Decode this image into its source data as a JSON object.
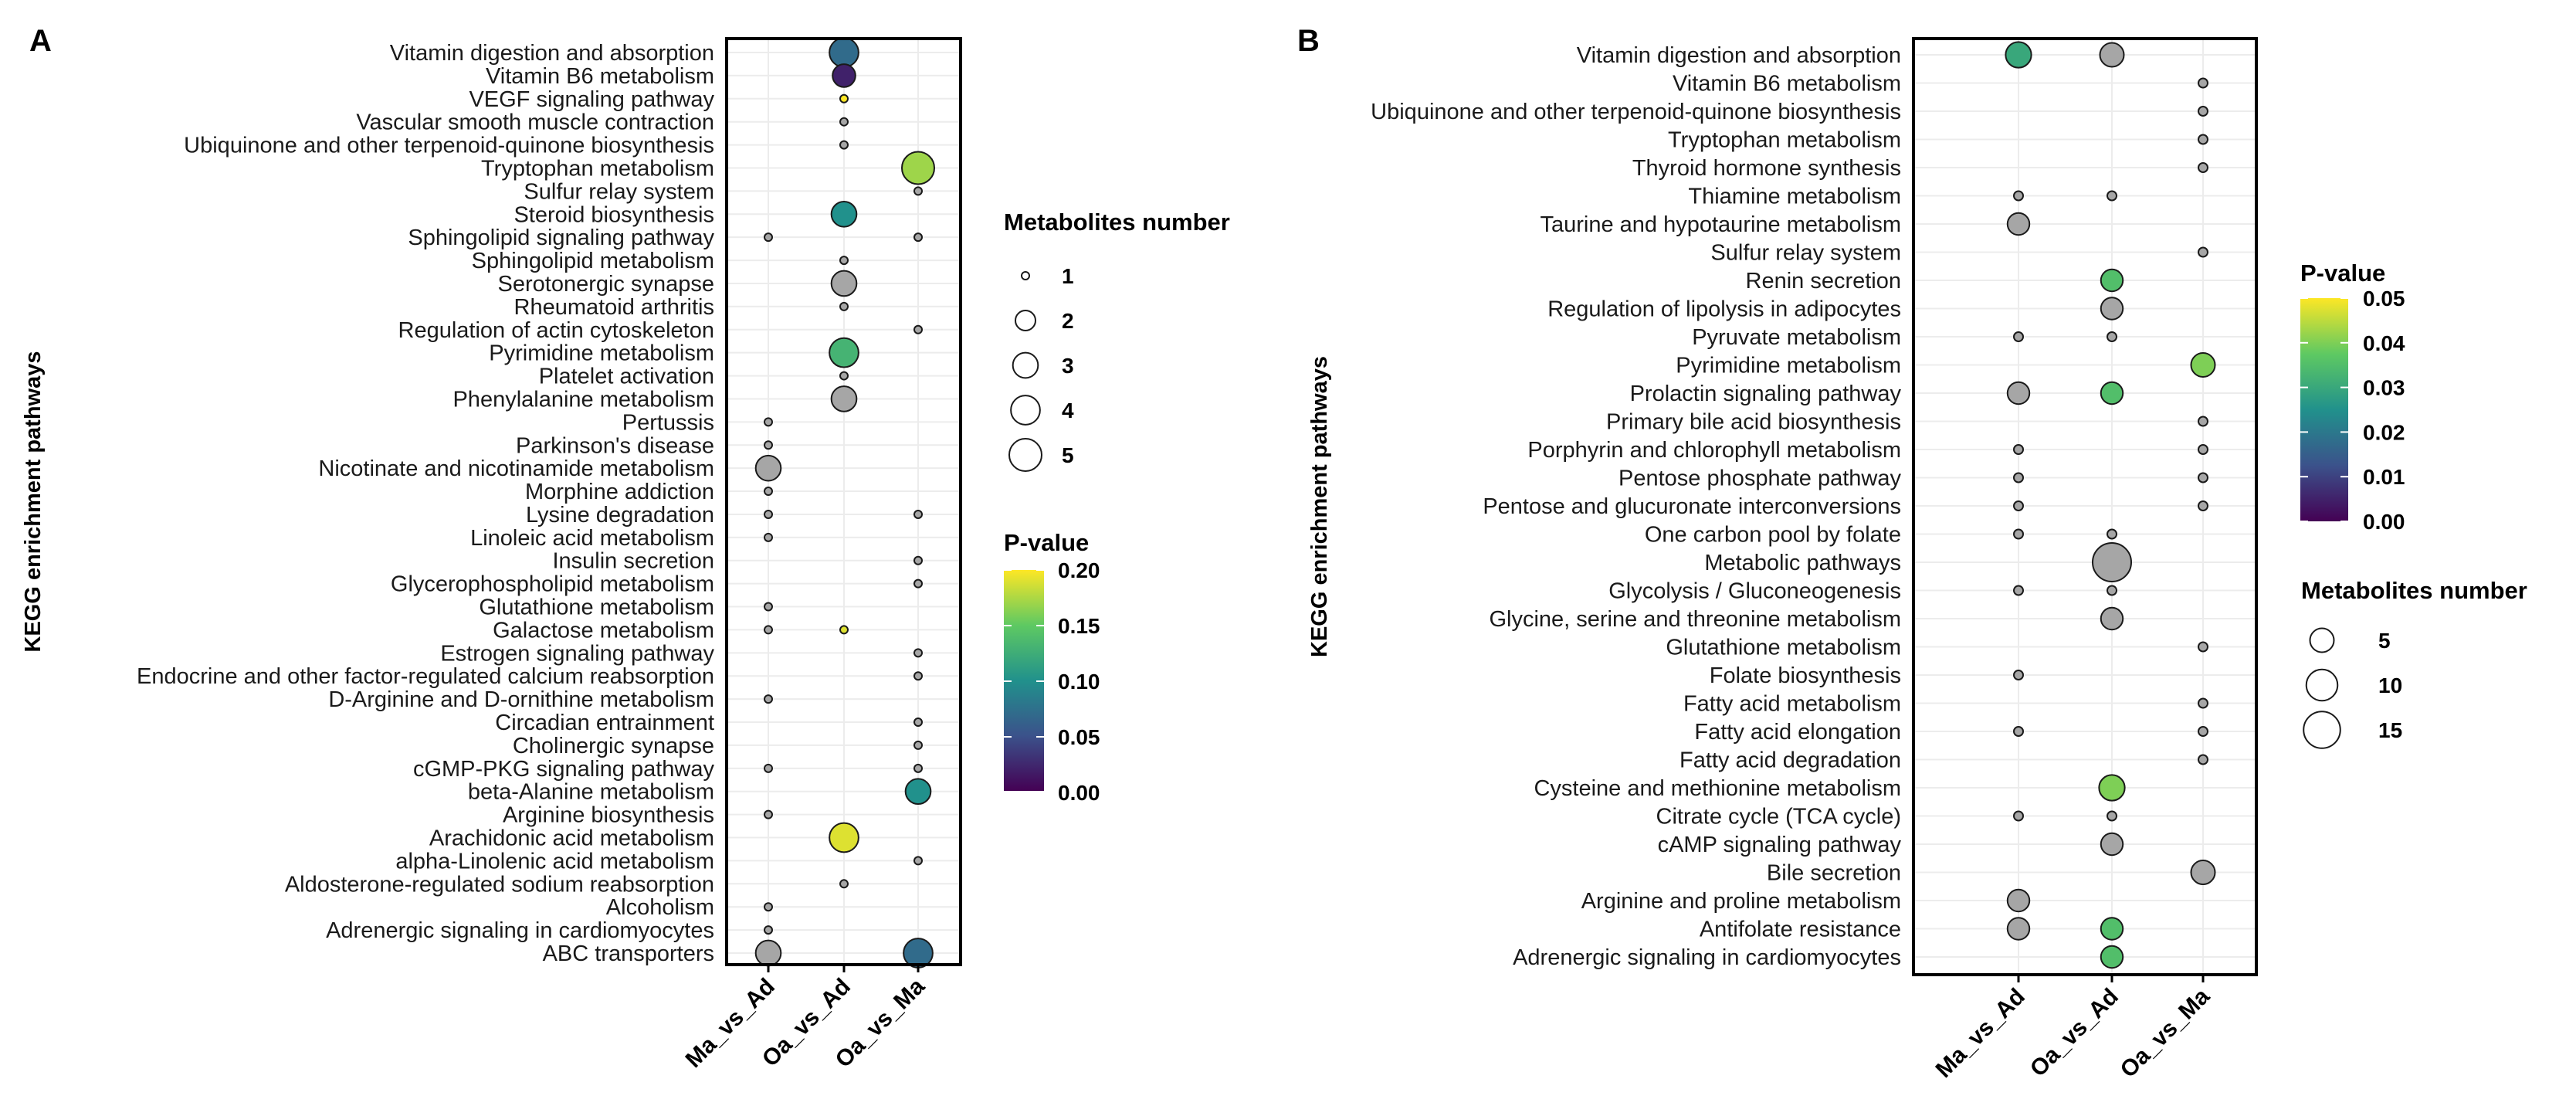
{
  "chart_data": [
    {
      "panel": "A",
      "type": "scatter",
      "subtype": "bubble",
      "ylabel": "KEGG enrichment pathways",
      "xlabel": "",
      "comparisons": [
        "Ma_vs_Ad",
        "Oa_vs_Ad",
        "Oa_vs_Ma"
      ],
      "pathways": [
        "Vitamin digestion and absorption",
        "Vitamin B6 metabolism",
        "VEGF signaling pathway",
        "Vascular smooth muscle contraction",
        "Ubiquinone and other terpenoid-quinone biosynthesis",
        "Tryptophan metabolism",
        "Sulfur relay system",
        "Steroid biosynthesis",
        "Sphingolipid signaling pathway",
        "Sphingolipid metabolism",
        "Serotonergic synapse",
        "Rheumatoid arthritis",
        "Regulation of actin cytoskeleton",
        "Pyrimidine metabolism",
        "Platelet activation",
        "Phenylalanine metabolism",
        "Pertussis",
        "Parkinson's disease",
        "Nicotinate and nicotinamide metabolism",
        "Morphine addiction",
        "Lysine degradation",
        "Linoleic acid metabolism",
        "Insulin secretion",
        "Glycerophospholipid metabolism",
        "Glutathione metabolism",
        "Galactose metabolism",
        "Estrogen signaling pathway",
        "Endocrine and other factor-regulated calcium reabsorption",
        "D-Arginine and D-ornithine metabolism",
        "Circadian entrainment",
        "Cholinergic synapse",
        "cGMP-PKG signaling pathway",
        "beta-Alanine metabolism",
        "Arginine biosynthesis",
        "Arachidonic acid metabolism",
        "alpha-Linolenic acid metabolism",
        "Aldosterone-regulated sodium reabsorption",
        "Alcoholism",
        "Adrenergic signaling in cardiomyocytes",
        "ABC transporters"
      ],
      "points": [
        {
          "pathway": "Vitamin digestion and absorption",
          "comparison": "Oa_vs_Ad",
          "count": 4,
          "pvalue": 0.07
        },
        {
          "pathway": "Vitamin B6 metabolism",
          "comparison": "Oa_vs_Ad",
          "count": 2.5,
          "pvalue": 0.02
        },
        {
          "pathway": "VEGF signaling pathway",
          "comparison": "Oa_vs_Ad",
          "count": 1,
          "pvalue": 0.2
        },
        {
          "pathway": "Vascular smooth muscle contraction",
          "comparison": "Oa_vs_Ad",
          "count": 1,
          "pvalue": null
        },
        {
          "pathway": "Ubiquinone and other terpenoid-quinone biosynthesis",
          "comparison": "Oa_vs_Ad",
          "count": 1,
          "pvalue": null
        },
        {
          "pathway": "Tryptophan metabolism",
          "comparison": "Oa_vs_Ma",
          "count": 5,
          "pvalue": 0.17
        },
        {
          "pathway": "Sulfur relay system",
          "comparison": "Oa_vs_Ma",
          "count": 1,
          "pvalue": null
        },
        {
          "pathway": "Steroid biosynthesis",
          "comparison": "Oa_vs_Ad",
          "count": 3,
          "pvalue": 0.1
        },
        {
          "pathway": "Sphingolipid signaling pathway",
          "comparison": "Ma_vs_Ad",
          "count": 1,
          "pvalue": null
        },
        {
          "pathway": "Sphingolipid signaling pathway",
          "comparison": "Oa_vs_Ma",
          "count": 1,
          "pvalue": null
        },
        {
          "pathway": "Sphingolipid metabolism",
          "comparison": "Oa_vs_Ad",
          "count": 1,
          "pvalue": null
        },
        {
          "pathway": "Serotonergic synapse",
          "comparison": "Oa_vs_Ad",
          "count": 3,
          "pvalue": null
        },
        {
          "pathway": "Rheumatoid arthritis",
          "comparison": "Oa_vs_Ad",
          "count": 1,
          "pvalue": null
        },
        {
          "pathway": "Regulation of actin cytoskeleton",
          "comparison": "Oa_vs_Ma",
          "count": 1,
          "pvalue": null
        },
        {
          "pathway": "Pyrimidine metabolism",
          "comparison": "Oa_vs_Ad",
          "count": 4,
          "pvalue": 0.13
        },
        {
          "pathway": "Platelet activation",
          "comparison": "Oa_vs_Ad",
          "count": 1,
          "pvalue": null
        },
        {
          "pathway": "Phenylalanine metabolism",
          "comparison": "Oa_vs_Ad",
          "count": 3,
          "pvalue": null
        },
        {
          "pathway": "Pertussis",
          "comparison": "Ma_vs_Ad",
          "count": 1,
          "pvalue": null
        },
        {
          "pathway": "Parkinson's disease",
          "comparison": "Ma_vs_Ad",
          "count": 1,
          "pvalue": null
        },
        {
          "pathway": "Nicotinate and nicotinamide metabolism",
          "comparison": "Ma_vs_Ad",
          "count": 3,
          "pvalue": null
        },
        {
          "pathway": "Morphine addiction",
          "comparison": "Ma_vs_Ad",
          "count": 1,
          "pvalue": null
        },
        {
          "pathway": "Lysine degradation",
          "comparison": "Ma_vs_Ad",
          "count": 1,
          "pvalue": null
        },
        {
          "pathway": "Lysine degradation",
          "comparison": "Oa_vs_Ma",
          "count": 1,
          "pvalue": null
        },
        {
          "pathway": "Linoleic acid metabolism",
          "comparison": "Ma_vs_Ad",
          "count": 1,
          "pvalue": null
        },
        {
          "pathway": "Insulin secretion",
          "comparison": "Oa_vs_Ma",
          "count": 1,
          "pvalue": null
        },
        {
          "pathway": "Glycerophospholipid metabolism",
          "comparison": "Oa_vs_Ma",
          "count": 1,
          "pvalue": null
        },
        {
          "pathway": "Glutathione metabolism",
          "comparison": "Ma_vs_Ad",
          "count": 1,
          "pvalue": null
        },
        {
          "pathway": "Galactose metabolism",
          "comparison": "Ma_vs_Ad",
          "count": 1,
          "pvalue": null
        },
        {
          "pathway": "Galactose metabolism",
          "comparison": "Oa_vs_Ad",
          "count": 1,
          "pvalue": 0.19
        },
        {
          "pathway": "Estrogen signaling pathway",
          "comparison": "Oa_vs_Ma",
          "count": 1,
          "pvalue": null
        },
        {
          "pathway": "Endocrine and other factor-regulated calcium reabsorption",
          "comparison": "Oa_vs_Ma",
          "count": 1,
          "pvalue": null
        },
        {
          "pathway": "D-Arginine and D-ornithine metabolism",
          "comparison": "Ma_vs_Ad",
          "count": 1,
          "pvalue": null
        },
        {
          "pathway": "Circadian entrainment",
          "comparison": "Oa_vs_Ma",
          "count": 1,
          "pvalue": null
        },
        {
          "pathway": "Cholinergic synapse",
          "comparison": "Oa_vs_Ma",
          "count": 1,
          "pvalue": null
        },
        {
          "pathway": "cGMP-PKG signaling pathway",
          "comparison": "Ma_vs_Ad",
          "count": 1,
          "pvalue": null
        },
        {
          "pathway": "cGMP-PKG signaling pathway",
          "comparison": "Oa_vs_Ma",
          "count": 1,
          "pvalue": null
        },
        {
          "pathway": "beta-Alanine metabolism",
          "comparison": "Oa_vs_Ma",
          "count": 3,
          "pvalue": 0.1
        },
        {
          "pathway": "Arginine biosynthesis",
          "comparison": "Ma_vs_Ad",
          "count": 1,
          "pvalue": null
        },
        {
          "pathway": "Arachidonic acid metabolism",
          "comparison": "Oa_vs_Ad",
          "count": 4,
          "pvalue": 0.19
        },
        {
          "pathway": "alpha-Linolenic acid metabolism",
          "comparison": "Oa_vs_Ma",
          "count": 1,
          "pvalue": null
        },
        {
          "pathway": "Aldosterone-regulated sodium reabsorption",
          "comparison": "Oa_vs_Ad",
          "count": 1,
          "pvalue": null
        },
        {
          "pathway": "Alcoholism",
          "comparison": "Ma_vs_Ad",
          "count": 1,
          "pvalue": null
        },
        {
          "pathway": "Adrenergic signaling in cardiomyocytes",
          "comparison": "Ma_vs_Ad",
          "count": 1,
          "pvalue": null
        },
        {
          "pathway": "ABC transporters",
          "comparison": "Ma_vs_Ad",
          "count": 3,
          "pvalue": null
        },
        {
          "pathway": "ABC transporters",
          "comparison": "Oa_vs_Ma",
          "count": 4,
          "pvalue": 0.07
        }
      ],
      "size_legend": {
        "title": "Metabolites number",
        "values": [
          1,
          2,
          3,
          4,
          5
        ],
        "range": [
          1,
          5
        ]
      },
      "color_legend": {
        "title": "P-value",
        "ticks": [
          "0.20",
          "0.15",
          "0.10",
          "0.05",
          "0.00"
        ],
        "range": [
          0,
          0.2
        ]
      },
      "na_color": "#a6a6a6"
    },
    {
      "panel": "B",
      "type": "scatter",
      "subtype": "bubble",
      "ylabel": "KEGG enrichment pathways",
      "xlabel": "",
      "comparisons": [
        "Ma_vs_Ad",
        "Oa_vs_Ad",
        "Oa_vs_Ma"
      ],
      "pathways": [
        "Vitamin digestion and absorption",
        "Vitamin B6 metabolism",
        "Ubiquinone and other terpenoid-quinone biosynthesis",
        "Tryptophan metabolism",
        "Thyroid hormone synthesis",
        "Thiamine metabolism",
        "Taurine and hypotaurine metabolism",
        "Sulfur relay system",
        "Renin secretion",
        "Regulation of lipolysis in adipocytes",
        "Pyruvate metabolism",
        "Pyrimidine metabolism",
        "Prolactin signaling pathway",
        "Primary bile acid biosynthesis",
        "Porphyrin and chlorophyll metabolism",
        "Pentose phosphate pathway",
        "Pentose and glucuronate interconversions",
        "One carbon pool by folate",
        "Metabolic pathways",
        "Glycolysis / Gluconeogenesis",
        "Glycine, serine and threonine metabolism",
        "Glutathione metabolism",
        "Folate biosynthesis",
        "Fatty acid metabolism",
        "Fatty acid elongation",
        "Fatty acid degradation",
        "Cysteine and methionine metabolism",
        "Citrate cycle (TCA cycle)",
        "cAMP signaling pathway",
        "Bile secretion",
        "Arginine and proline metabolism",
        "Antifolate resistance",
        "Adrenergic signaling in cardiomyocytes"
      ],
      "points": [
        {
          "pathway": "Vitamin digestion and absorption",
          "comparison": "Ma_vs_Ad",
          "count": 6,
          "pvalue": 0.03
        },
        {
          "pathway": "Vitamin digestion and absorption",
          "comparison": "Oa_vs_Ad",
          "count": 5,
          "pvalue": null
        },
        {
          "pathway": "Vitamin B6 metabolism",
          "comparison": "Oa_vs_Ma",
          "count": 1,
          "pvalue": null
        },
        {
          "pathway": "Ubiquinone and other terpenoid-quinone biosynthesis",
          "comparison": "Oa_vs_Ma",
          "count": 1,
          "pvalue": null
        },
        {
          "pathway": "Tryptophan metabolism",
          "comparison": "Oa_vs_Ma",
          "count": 1,
          "pvalue": null
        },
        {
          "pathway": "Thyroid hormone synthesis",
          "comparison": "Oa_vs_Ma",
          "count": 1,
          "pvalue": null
        },
        {
          "pathway": "Thiamine metabolism",
          "comparison": "Ma_vs_Ad",
          "count": 1,
          "pvalue": null
        },
        {
          "pathway": "Thiamine metabolism",
          "comparison": "Oa_vs_Ad",
          "count": 1,
          "pvalue": null
        },
        {
          "pathway": "Taurine and hypotaurine metabolism",
          "comparison": "Ma_vs_Ad",
          "count": 4,
          "pvalue": null
        },
        {
          "pathway": "Sulfur relay system",
          "comparison": "Oa_vs_Ma",
          "count": 1,
          "pvalue": null
        },
        {
          "pathway": "Renin secretion",
          "comparison": "Oa_vs_Ad",
          "count": 4,
          "pvalue": 0.035
        },
        {
          "pathway": "Regulation of lipolysis in adipocytes",
          "comparison": "Oa_vs_Ad",
          "count": 4,
          "pvalue": null
        },
        {
          "pathway": "Pyruvate metabolism",
          "comparison": "Ma_vs_Ad",
          "count": 1,
          "pvalue": null
        },
        {
          "pathway": "Pyruvate metabolism",
          "comparison": "Oa_vs_Ad",
          "count": 1,
          "pvalue": null
        },
        {
          "pathway": "Pyrimidine metabolism",
          "comparison": "Oa_vs_Ma",
          "count": 5,
          "pvalue": 0.04
        },
        {
          "pathway": "Prolactin signaling pathway",
          "comparison": "Ma_vs_Ad",
          "count": 4,
          "pvalue": null
        },
        {
          "pathway": "Prolactin signaling pathway",
          "comparison": "Oa_vs_Ad",
          "count": 4,
          "pvalue": 0.035
        },
        {
          "pathway": "Primary bile acid biosynthesis",
          "comparison": "Oa_vs_Ma",
          "count": 1,
          "pvalue": null
        },
        {
          "pathway": "Porphyrin and chlorophyll metabolism",
          "comparison": "Ma_vs_Ad",
          "count": 1,
          "pvalue": null
        },
        {
          "pathway": "Porphyrin and chlorophyll metabolism",
          "comparison": "Oa_vs_Ma",
          "count": 1,
          "pvalue": null
        },
        {
          "pathway": "Pentose phosphate pathway",
          "comparison": "Ma_vs_Ad",
          "count": 1,
          "pvalue": null
        },
        {
          "pathway": "Pentose phosphate pathway",
          "comparison": "Oa_vs_Ma",
          "count": 1,
          "pvalue": null
        },
        {
          "pathway": "Pentose and glucuronate interconversions",
          "comparison": "Ma_vs_Ad",
          "count": 1,
          "pvalue": null
        },
        {
          "pathway": "Pentose and glucuronate interconversions",
          "comparison": "Oa_vs_Ma",
          "count": 1,
          "pvalue": null
        },
        {
          "pathway": "One carbon pool by folate",
          "comparison": "Ma_vs_Ad",
          "count": 1,
          "pvalue": null
        },
        {
          "pathway": "One carbon pool by folate",
          "comparison": "Oa_vs_Ad",
          "count": 1,
          "pvalue": null
        },
        {
          "pathway": "Metabolic pathways",
          "comparison": "Oa_vs_Ad",
          "count": 17,
          "pvalue": null
        },
        {
          "pathway": "Glycolysis / Gluconeogenesis",
          "comparison": "Ma_vs_Ad",
          "count": 1,
          "pvalue": null
        },
        {
          "pathway": "Glycolysis / Gluconeogenesis",
          "comparison": "Oa_vs_Ad",
          "count": 1,
          "pvalue": null
        },
        {
          "pathway": "Glycine, serine and threonine metabolism",
          "comparison": "Oa_vs_Ad",
          "count": 4,
          "pvalue": null
        },
        {
          "pathway": "Glutathione metabolism",
          "comparison": "Oa_vs_Ma",
          "count": 1,
          "pvalue": null
        },
        {
          "pathway": "Folate biosynthesis",
          "comparison": "Ma_vs_Ad",
          "count": 1,
          "pvalue": null
        },
        {
          "pathway": "Fatty acid metabolism",
          "comparison": "Oa_vs_Ma",
          "count": 1,
          "pvalue": null
        },
        {
          "pathway": "Fatty acid elongation",
          "comparison": "Ma_vs_Ad",
          "count": 1,
          "pvalue": null
        },
        {
          "pathway": "Fatty acid elongation",
          "comparison": "Oa_vs_Ma",
          "count": 1,
          "pvalue": null
        },
        {
          "pathway": "Fatty acid degradation",
          "comparison": "Oa_vs_Ma",
          "count": 1,
          "pvalue": null
        },
        {
          "pathway": "Cysteine and methionine metabolism",
          "comparison": "Oa_vs_Ad",
          "count": 6,
          "pvalue": 0.04
        },
        {
          "pathway": "Citrate cycle (TCA cycle)",
          "comparison": "Ma_vs_Ad",
          "count": 1,
          "pvalue": null
        },
        {
          "pathway": "Citrate cycle (TCA cycle)",
          "comparison": "Oa_vs_Ad",
          "count": 1,
          "pvalue": null
        },
        {
          "pathway": "cAMP signaling pathway",
          "comparison": "Oa_vs_Ad",
          "count": 4,
          "pvalue": null
        },
        {
          "pathway": "Bile secretion",
          "comparison": "Oa_vs_Ma",
          "count": 5,
          "pvalue": null
        },
        {
          "pathway": "Arginine and proline metabolism",
          "comparison": "Ma_vs_Ad",
          "count": 4,
          "pvalue": null
        },
        {
          "pathway": "Antifolate resistance",
          "comparison": "Ma_vs_Ad",
          "count": 4,
          "pvalue": null
        },
        {
          "pathway": "Antifolate resistance",
          "comparison": "Oa_vs_Ad",
          "count": 4,
          "pvalue": 0.035
        },
        {
          "pathway": "Adrenergic signaling in cardiomyocytes",
          "comparison": "Oa_vs_Ad",
          "count": 4,
          "pvalue": 0.035
        }
      ],
      "size_legend": {
        "title": "Metabolites number",
        "values": [
          5,
          10,
          15
        ],
        "range": [
          1,
          17
        ]
      },
      "color_legend": {
        "title": "P-value",
        "ticks": [
          "0.05",
          "0.04",
          "0.03",
          "0.02",
          "0.01",
          "0.00"
        ],
        "range": [
          0,
          0.05
        ]
      },
      "na_color": "#a6a6a6"
    }
  ]
}
